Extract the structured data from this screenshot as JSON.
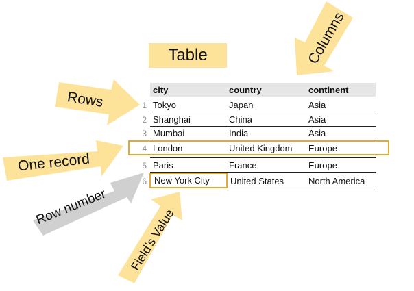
{
  "title": "Table",
  "columns": [
    "city",
    "country",
    "continent"
  ],
  "rows": [
    {
      "num": "1",
      "city": "Tokyo",
      "country": "Japan",
      "continent": "Asia"
    },
    {
      "num": "2",
      "city": "Shanghai",
      "country": "China",
      "continent": "Asia"
    },
    {
      "num": "3",
      "city": "Mumbai",
      "country": "India",
      "continent": "Asia"
    },
    {
      "num": "4",
      "city": "London",
      "country": "United Kingdom",
      "continent": "Europe"
    },
    {
      "num": "5",
      "city": "Paris",
      "country": "France",
      "continent": "Europe"
    },
    {
      "num": "6",
      "city": "New York City",
      "country": "United States",
      "continent": "North America"
    }
  ],
  "annotations": {
    "rows": "Rows",
    "columns": "Columns",
    "one_record": "One record",
    "row_number": "Row number",
    "field_value": "Field’s Value"
  },
  "colors": {
    "arrow_yellow": "#fde39a",
    "arrow_gray": "#d0d0d0",
    "highlight": "#e7a833",
    "header_bg": "#e6e6e6"
  }
}
